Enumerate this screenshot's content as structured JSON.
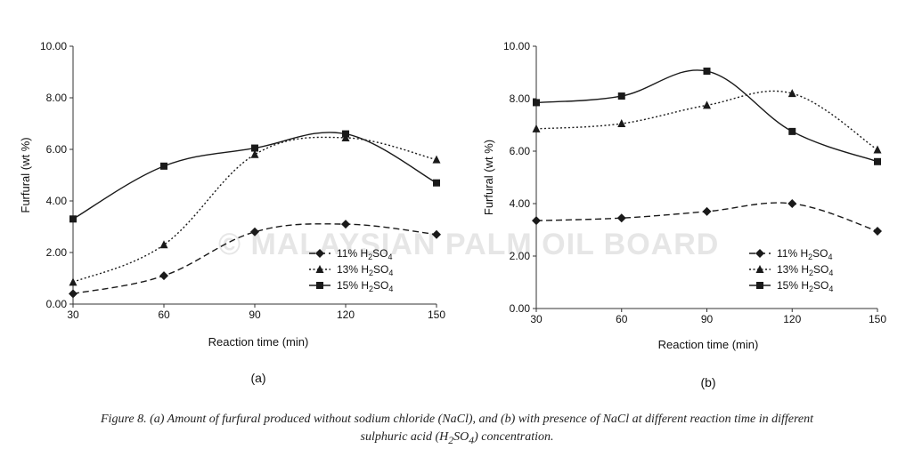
{
  "watermark_text": "© MALAYSIAN PALM OIL BOARD",
  "caption": {
    "line1": "Figure 8. (a) Amount of furfural produced without sodium chloride (NaCl), and (b) with presence of NaCl at different reaction time in  different",
    "line2_before": "sulphuric acid (H",
    "line2_sub1": "2",
    "line2_mid": "SO",
    "line2_sub2": "4",
    "line2_after": ") concentration."
  },
  "colors": {
    "series": "#1a1a1a",
    "axis": "#333333",
    "watermark": "#e6e6e6"
  },
  "chart_data": [
    {
      "type": "line",
      "panel_label": "(a)",
      "xlabel": "Reaction time (min)",
      "ylabel": "Furfural (wt %)",
      "x": [
        30,
        60,
        90,
        120,
        150
      ],
      "xlim": [
        30,
        150
      ],
      "ylim": [
        0,
        10
      ],
      "yticks": [
        "0.00",
        "2.00",
        "4.00",
        "6.00",
        "8.00",
        "10.00"
      ],
      "xticks": [
        "30",
        "60",
        "90",
        "120",
        "150"
      ],
      "grid": false,
      "legend_position": "center-right",
      "series": [
        {
          "name": "11% H2SO4",
          "name_base": "11% H",
          "name_sub1": "2",
          "name_mid": "SO",
          "name_sub2": "4",
          "line_style": "dashed",
          "marker": "diamond",
          "values": [
            0.4,
            1.1,
            2.8,
            3.1,
            2.7
          ]
        },
        {
          "name": "13% H2SO4",
          "name_base": "13% H",
          "name_sub1": "2",
          "name_mid": "SO",
          "name_sub2": "4",
          "line_style": "dotted",
          "marker": "triangle",
          "values": [
            0.85,
            2.3,
            5.8,
            6.45,
            5.6
          ]
        },
        {
          "name": "15% H2SO4",
          "name_base": "15% H",
          "name_sub1": "2",
          "name_mid": "SO",
          "name_sub2": "4",
          "line_style": "solid",
          "marker": "square",
          "values": [
            3.3,
            5.35,
            6.05,
            6.6,
            4.7
          ]
        }
      ]
    },
    {
      "type": "line",
      "panel_label": "(b)",
      "xlabel": "Reaction time (min)",
      "ylabel": "Furfural (wt %)",
      "x": [
        30,
        60,
        90,
        120,
        150
      ],
      "xlim": [
        30,
        150
      ],
      "ylim": [
        0,
        10
      ],
      "yticks": [
        "0.00",
        "2.00",
        "4.00",
        "6.00",
        "8.00",
        "10.00"
      ],
      "xticks": [
        "30",
        "60",
        "90",
        "120",
        "150"
      ],
      "grid": false,
      "legend_position": "center-right",
      "series": [
        {
          "name": "11% H2SO4",
          "name_base": "11% H",
          "name_sub1": "2",
          "name_mid": "SO",
          "name_sub2": "4",
          "line_style": "dashed",
          "marker": "diamond",
          "values": [
            3.35,
            3.45,
            3.7,
            4.0,
            2.95
          ]
        },
        {
          "name": "13% H2SO4",
          "name_base": "13% H",
          "name_sub1": "2",
          "name_mid": "SO",
          "name_sub2": "4",
          "line_style": "dotted",
          "marker": "triangle",
          "values": [
            6.85,
            7.05,
            7.75,
            8.2,
            6.05
          ]
        },
        {
          "name": "15% H2SO4",
          "name_base": "15% H",
          "name_sub1": "2",
          "name_mid": "SO",
          "name_sub2": "4",
          "line_style": "solid",
          "marker": "square",
          "values": [
            7.85,
            8.1,
            9.05,
            6.75,
            5.6
          ]
        }
      ]
    }
  ]
}
